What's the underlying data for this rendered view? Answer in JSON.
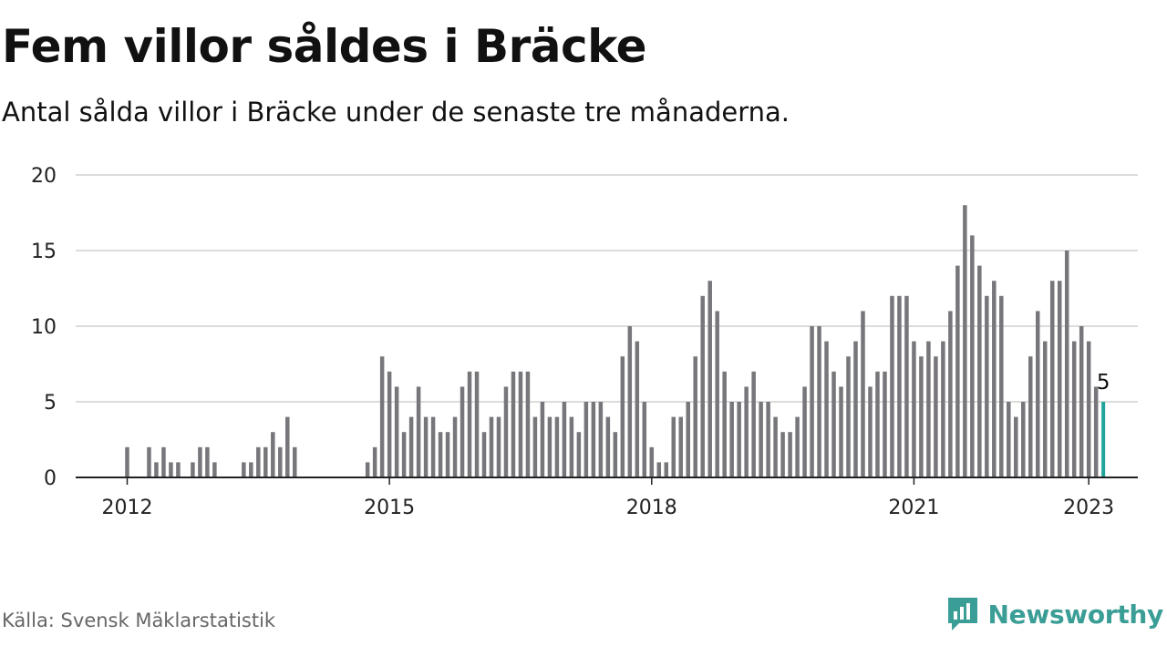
{
  "header": {
    "title": "Fem villor såldes i Bräcke",
    "subtitle": "Antal sålda villor i Bräcke under de senaste tre månaderna."
  },
  "footer": {
    "source": "Källa: Svensk Mäklarstatistik",
    "brand": "Newsworthy"
  },
  "colors": {
    "bar": "#77767b",
    "highlight": "#1fa39a",
    "grid": "#dcdcdc",
    "axis": "#222222",
    "brand": "#3b9e96"
  },
  "icons": {
    "brand_logo": "newsworthy-logo-icon"
  },
  "chart_data": {
    "type": "bar",
    "title": "Fem villor såldes i Bräcke",
    "subtitle": "Antal sålda villor i Bräcke under de senaste tre månaderna.",
    "xlabel": "",
    "ylabel": "",
    "x_start": "2012-01",
    "x_ticks": [
      "2012",
      "2015",
      "2018",
      "2021",
      "2023"
    ],
    "y_ticks": [
      0,
      5,
      10,
      15,
      20
    ],
    "ylim": [
      0,
      20
    ],
    "grid": true,
    "legend": "none",
    "highlight_label": "5",
    "values": [
      2,
      0,
      0,
      2,
      1,
      2,
      1,
      1,
      0,
      1,
      2,
      2,
      1,
      0,
      0,
      0,
      1,
      1,
      2,
      2,
      3,
      2,
      4,
      2,
      0,
      0,
      0,
      0,
      0,
      0,
      0,
      0,
      0,
      1,
      2,
      8,
      7,
      6,
      3,
      4,
      6,
      4,
      4,
      3,
      3,
      4,
      6,
      7,
      7,
      3,
      4,
      4,
      6,
      7,
      7,
      7,
      4,
      5,
      4,
      4,
      5,
      4,
      3,
      5,
      5,
      5,
      4,
      3,
      8,
      10,
      9,
      5,
      2,
      1,
      1,
      4,
      4,
      5,
      8,
      12,
      13,
      11,
      7,
      5,
      5,
      6,
      7,
      5,
      5,
      4,
      3,
      3,
      4,
      6,
      10,
      10,
      9,
      7,
      6,
      8,
      9,
      11,
      6,
      7,
      7,
      12,
      12,
      12,
      9,
      8,
      9,
      8,
      9,
      11,
      14,
      18,
      16,
      14,
      12,
      13,
      12,
      5,
      4,
      5,
      8,
      11,
      9,
      13,
      13,
      15,
      9,
      10,
      9,
      6,
      5
    ]
  }
}
